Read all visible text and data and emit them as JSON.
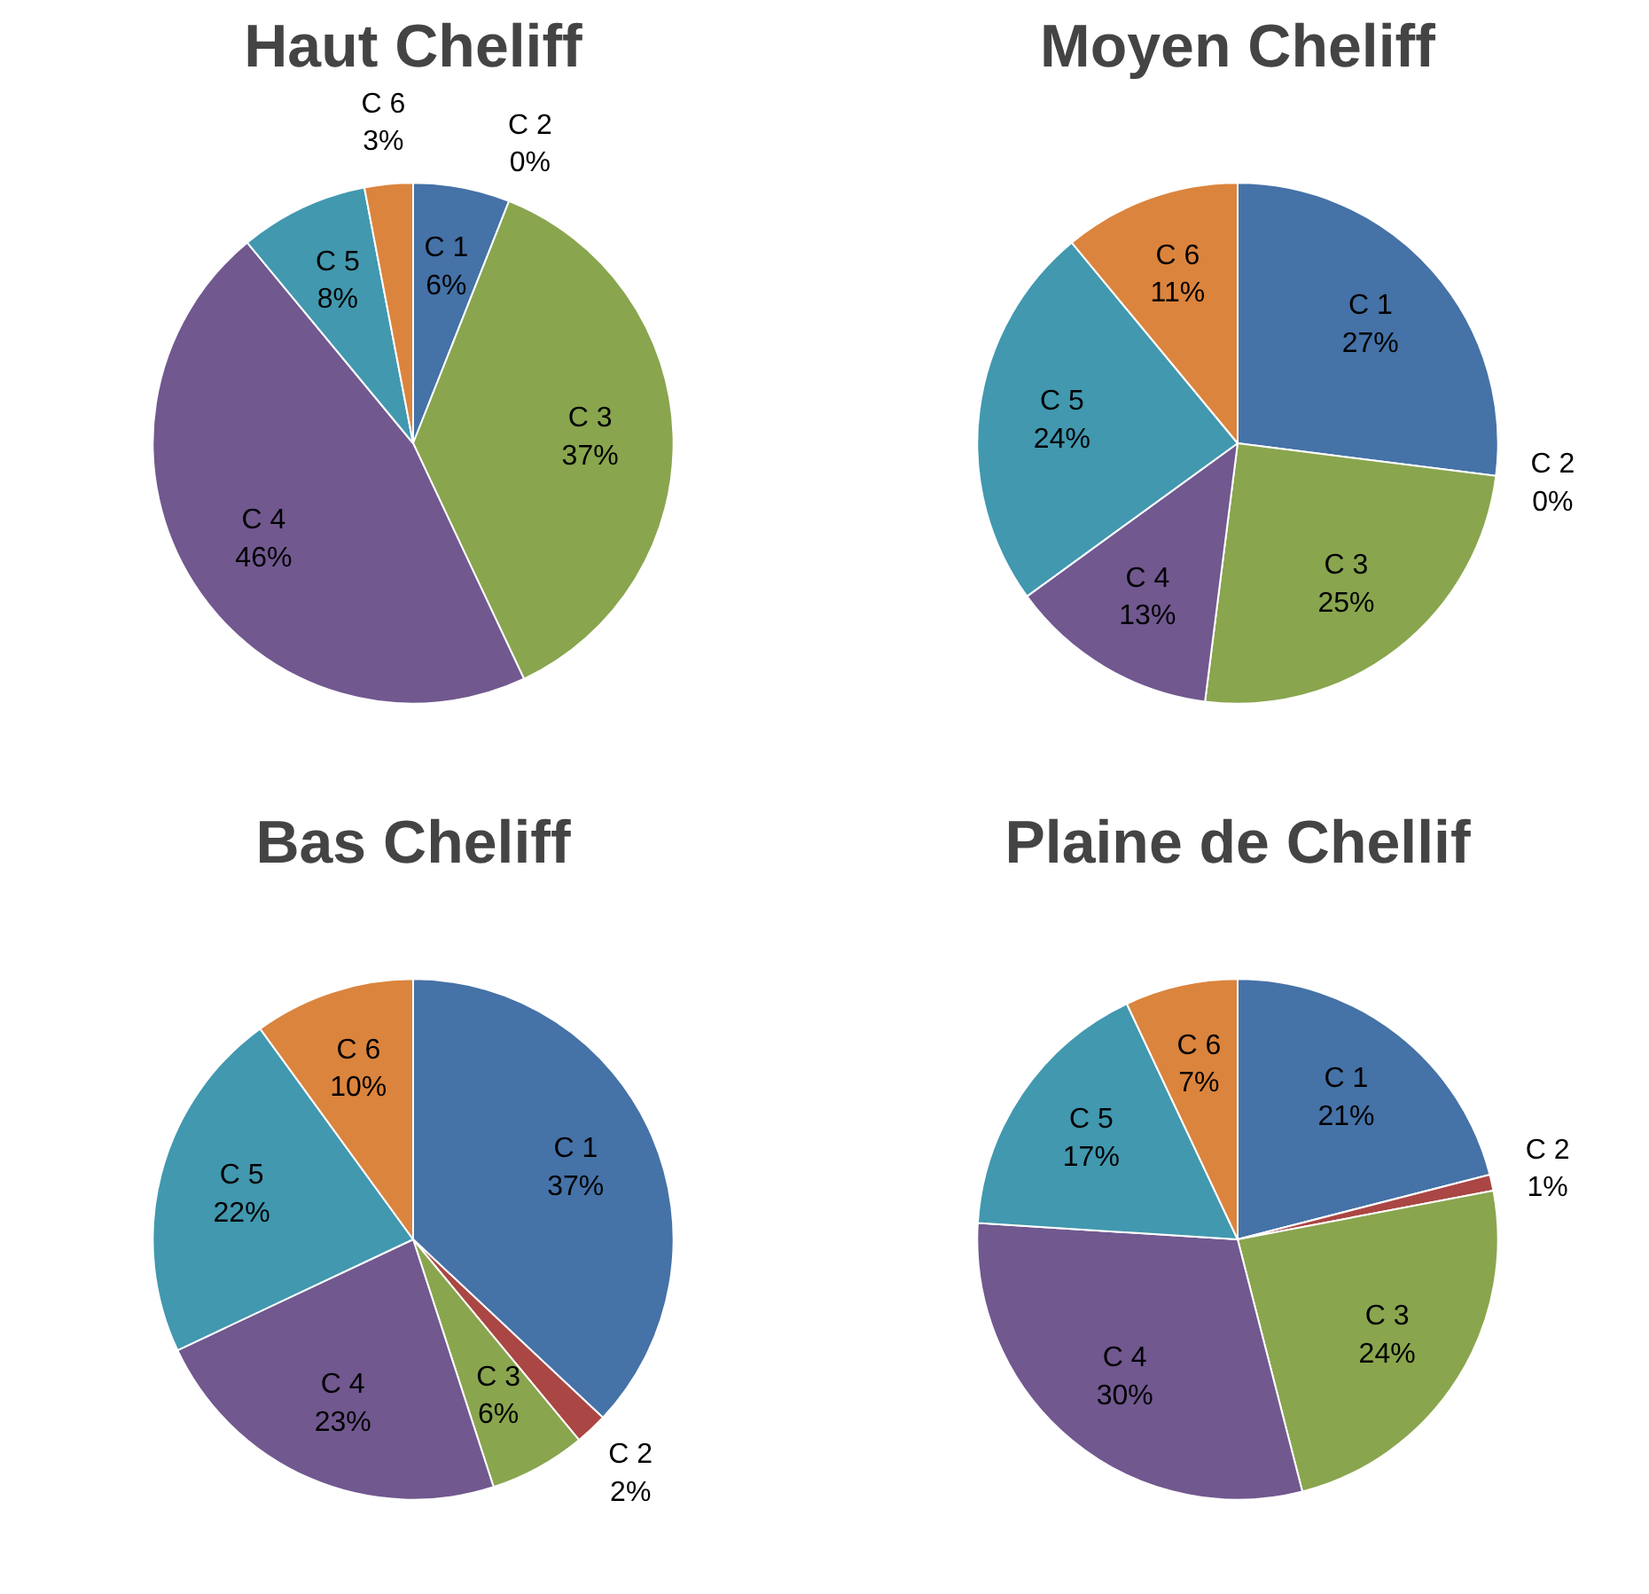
{
  "chart_data": [
    {
      "type": "pie",
      "title": "Haut Cheliff",
      "categories": [
        "C 1",
        "C 2",
        "C 3",
        "C 4",
        "C 5",
        "C 6"
      ],
      "values": [
        6,
        0,
        37,
        46,
        8,
        3
      ],
      "value_labels": [
        "6%",
        "0%",
        "37%",
        "46%",
        "8%",
        "3%"
      ],
      "colors": [
        "#4572a7",
        "#aa4643",
        "#89a54e",
        "#71588f",
        "#4198af",
        "#db843d"
      ]
    },
    {
      "type": "pie",
      "title": "Moyen Cheliff",
      "categories": [
        "C 1",
        "C 2",
        "C 3",
        "C 4",
        "C 5",
        "C 6"
      ],
      "values": [
        27,
        0,
        25,
        13,
        24,
        11
      ],
      "value_labels": [
        "27%",
        "0%",
        "25%",
        "13%",
        "24%",
        "11%"
      ],
      "colors": [
        "#4572a7",
        "#aa4643",
        "#89a54e",
        "#71588f",
        "#4198af",
        "#db843d"
      ]
    },
    {
      "type": "pie",
      "title": "Bas Cheliff",
      "categories": [
        "C 1",
        "C 2",
        "C 3",
        "C 4",
        "C 5",
        "C 6"
      ],
      "values": [
        37,
        2,
        6,
        23,
        22,
        10
      ],
      "value_labels": [
        "37%",
        "2%",
        "6%",
        "23%",
        "22%",
        "10%"
      ],
      "colors": [
        "#4572a7",
        "#aa4643",
        "#89a54e",
        "#71588f",
        "#4198af",
        "#db843d"
      ]
    },
    {
      "type": "pie",
      "title": "Plaine de Chellif",
      "categories": [
        "C 1",
        "C 2",
        "C 3",
        "C 4",
        "C 5",
        "C 6"
      ],
      "values": [
        21,
        1,
        24,
        30,
        17,
        7
      ],
      "value_labels": [
        "21%",
        "1%",
        "24%",
        "30%",
        "17%",
        "7%"
      ],
      "colors": [
        "#4572a7",
        "#aa4643",
        "#89a54e",
        "#71588f",
        "#4198af",
        "#db843d"
      ]
    }
  ]
}
